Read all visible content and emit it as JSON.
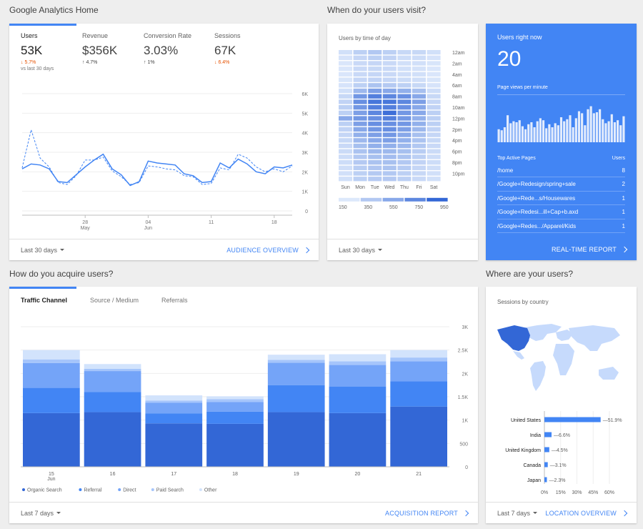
{
  "sections": {
    "home": "Google Analytics Home",
    "visit": "When do your users visit?",
    "acquire": "How do you acquire users?",
    "where": "Where are your users?"
  },
  "kpis": [
    {
      "label": "Users",
      "value": "53K",
      "change": "5.7%",
      "direction": "down",
      "sub": "vs last 30 days"
    },
    {
      "label": "Revenue",
      "value": "$356K",
      "change": "4.7%",
      "direction": "up",
      "sub": ""
    },
    {
      "label": "Conversion Rate",
      "value": "3.03%",
      "change": "1%",
      "direction": "up",
      "sub": ""
    },
    {
      "label": "Sessions",
      "value": "67K",
      "change": "6.4%",
      "direction": "down",
      "sub": ""
    }
  ],
  "audience": {
    "footer_range": "Last 30 days",
    "footer_link": "AUDIENCE OVERVIEW",
    "chart_data": {
      "type": "line",
      "y_ticks": [
        "6K",
        "5K",
        "4K",
        "3K",
        "2K",
        "1K",
        "0"
      ],
      "ylim": [
        0,
        6000
      ],
      "x_ticks": [
        {
          "day": 7,
          "label": "28",
          "sub": "May"
        },
        {
          "day": 14,
          "label": "04",
          "sub": "Jun"
        },
        {
          "day": 21,
          "label": "11",
          "sub": ""
        },
        {
          "day": 28,
          "label": "18",
          "sub": ""
        }
      ],
      "series": [
        {
          "values": [
            2150,
            2400,
            2350,
            2150,
            1500,
            1450,
            1850,
            2250,
            2600,
            2900,
            2150,
            1850,
            1300,
            1500,
            2550,
            2450,
            2400,
            2350,
            1900,
            1800,
            1450,
            1500,
            2450,
            2200,
            2650,
            2400,
            2000,
            1900,
            2250,
            2200,
            2350
          ],
          "style": "solid"
        },
        {
          "values": [
            2200,
            4150,
            2700,
            2250,
            1450,
            1350,
            1800,
            2600,
            2600,
            2750,
            2050,
            1750,
            1350,
            1450,
            2300,
            2250,
            2150,
            2100,
            1800,
            1750,
            1350,
            1400,
            2200,
            2100,
            2900,
            2700,
            2250,
            2000,
            2150,
            2000,
            2300
          ],
          "style": "dashed"
        }
      ]
    }
  },
  "heatmap": {
    "title": "Users by time of day",
    "footer_range": "Last 30 days",
    "days": [
      "Sun",
      "Mon",
      "Tue",
      "Wed",
      "Thu",
      "Fri",
      "Sat"
    ],
    "hour_labels": [
      "12am",
      "2am",
      "4am",
      "6am",
      "8am",
      "10am",
      "12pm",
      "2pm",
      "4pm",
      "6pm",
      "8pm",
      "10pm"
    ],
    "scale": [
      "150",
      "350",
      "550",
      "750",
      "950"
    ],
    "chart_data": {
      "type": "heatmap",
      "rows": 24,
      "cols": 7,
      "values": [
        [
          200,
          300,
          350,
          300,
          250,
          250,
          200
        ],
        [
          180,
          260,
          300,
          280,
          220,
          220,
          180
        ],
        [
          160,
          240,
          260,
          240,
          200,
          200,
          170
        ],
        [
          160,
          240,
          250,
          240,
          200,
          190,
          160
        ],
        [
          160,
          240,
          260,
          240,
          210,
          200,
          160
        ],
        [
          170,
          260,
          280,
          260,
          230,
          210,
          170
        ],
        [
          180,
          300,
          380,
          340,
          300,
          250,
          180
        ],
        [
          200,
          450,
          600,
          550,
          500,
          400,
          220
        ],
        [
          250,
          650,
          800,
          750,
          700,
          550,
          250
        ],
        [
          280,
          700,
          850,
          850,
          750,
          600,
          260
        ],
        [
          300,
          650,
          800,
          800,
          700,
          550,
          280
        ],
        [
          300,
          600,
          750,
          900,
          650,
          550,
          300
        ],
        [
          550,
          650,
          700,
          800,
          650,
          500,
          300
        ],
        [
          300,
          600,
          700,
          700,
          650,
          500,
          300
        ],
        [
          280,
          550,
          650,
          700,
          600,
          450,
          280
        ],
        [
          260,
          500,
          600,
          650,
          550,
          400,
          260
        ],
        [
          250,
          450,
          550,
          600,
          500,
          380,
          250
        ],
        [
          240,
          400,
          500,
          500,
          450,
          350,
          240
        ],
        [
          230,
          380,
          450,
          450,
          400,
          320,
          230
        ],
        [
          220,
          350,
          400,
          420,
          380,
          300,
          220
        ],
        [
          220,
          340,
          380,
          400,
          350,
          280,
          220
        ],
        [
          210,
          320,
          360,
          380,
          330,
          260,
          210
        ],
        [
          200,
          300,
          340,
          350,
          300,
          250,
          200
        ],
        [
          200,
          300,
          330,
          340,
          300,
          240,
          200
        ]
      ],
      "range": [
        150,
        950
      ]
    }
  },
  "realtime": {
    "title": "Users right now",
    "count": "20",
    "pv_label": "Page views per minute",
    "bars": [
      26,
      24,
      30,
      54,
      38,
      42,
      40,
      44,
      32,
      26,
      36,
      40,
      30,
      42,
      48,
      44,
      28,
      36,
      30,
      38,
      34,
      50,
      42,
      46,
      54,
      30,
      48,
      62,
      58,
      34,
      66,
      72,
      58,
      60,
      66,
      46,
      38,
      42,
      56,
      40,
      44,
      34,
      52
    ],
    "pages_header": "Top Active Pages",
    "users_header": "Users",
    "pages": [
      {
        "page": "/home",
        "users": "8"
      },
      {
        "page": "/Google+Redesign/spring+sale",
        "users": "2"
      },
      {
        "page": "/Google+Rede...s/Housewares",
        "users": "1"
      },
      {
        "page": "/Google+Redesi...ill+Cap+b.axd",
        "users": "1"
      },
      {
        "page": "/Google+Redes.../Apparel/Kids",
        "users": "1"
      }
    ],
    "footer_link": "REAL-TIME REPORT"
  },
  "acquisition": {
    "tabs": [
      "Traffic Channel",
      "Source / Medium",
      "Referrals"
    ],
    "footer_range": "Last 7 days",
    "footer_link": "ACQUISITION REPORT",
    "chart_data": {
      "type": "bar",
      "stacked": true,
      "categories": [
        "15",
        "16",
        "17",
        "18",
        "19",
        "20",
        "21"
      ],
      "category_sub": [
        "Jun",
        "",
        "",
        "",
        "",
        "",
        ""
      ],
      "y_ticks": [
        "3K",
        "2.5K",
        "2K",
        "1.5K",
        "1K",
        "500",
        "0"
      ],
      "ylim": [
        0,
        3000
      ],
      "series": [
        {
          "name": "Organic Search",
          "values": [
            1150,
            1170,
            930,
            920,
            1170,
            1150,
            1290
          ],
          "color": "#3367d6"
        },
        {
          "name": "Referral",
          "values": [
            540,
            430,
            210,
            260,
            580,
            570,
            540
          ],
          "color": "#4285f4"
        },
        {
          "name": "Direct",
          "values": [
            530,
            450,
            230,
            210,
            480,
            460,
            430
          ],
          "color": "#74a4f8"
        },
        {
          "name": "Paid Search",
          "values": [
            80,
            50,
            50,
            60,
            60,
            80,
            80
          ],
          "color": "#a5c5fb"
        },
        {
          "name": "Other",
          "values": [
            200,
            100,
            110,
            60,
            110,
            150,
            160
          ],
          "color": "#d2e3fc"
        }
      ]
    }
  },
  "geo": {
    "title": "Sessions by country",
    "footer_range": "Last 7 days",
    "footer_link": "LOCATION OVERVIEW",
    "chart_data": {
      "type": "bar",
      "orientation": "horizontal",
      "categories": [
        "United States",
        "India",
        "United Kingdom",
        "Canada",
        "Japan"
      ],
      "values": [
        51.9,
        6.6,
        4.5,
        3.1,
        2.3
      ],
      "labels": [
        "51.9%",
        "6.6%",
        "4.5%",
        "3.1%",
        "2.3%"
      ],
      "x_ticks": [
        "0%",
        "15%",
        "30%",
        "45%",
        "60%"
      ],
      "xlim": [
        0,
        60
      ]
    }
  },
  "colors": {
    "accent": "#4285f4",
    "down": "#e65100"
  }
}
